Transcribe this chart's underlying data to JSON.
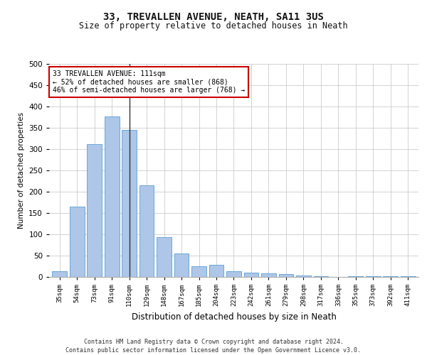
{
  "title1": "33, TREVALLEN AVENUE, NEATH, SA11 3US",
  "title2": "Size of property relative to detached houses in Neath",
  "xlabel": "Distribution of detached houses by size in Neath",
  "ylabel": "Number of detached properties",
  "categories": [
    "35sqm",
    "54sqm",
    "73sqm",
    "91sqm",
    "110sqm",
    "129sqm",
    "148sqm",
    "167sqm",
    "185sqm",
    "204sqm",
    "223sqm",
    "242sqm",
    "261sqm",
    "279sqm",
    "298sqm",
    "317sqm",
    "336sqm",
    "355sqm",
    "373sqm",
    "392sqm",
    "411sqm"
  ],
  "values": [
    13,
    165,
    312,
    377,
    345,
    215,
    93,
    55,
    25,
    28,
    13,
    10,
    8,
    6,
    4,
    2,
    0,
    2,
    1,
    1,
    1
  ],
  "bar_color": "#aec6e8",
  "bar_edge_color": "#5a9fd4",
  "highlight_index": 4,
  "highlight_line_color": "#333333",
  "annotation_line1": "33 TREVALLEN AVENUE: 111sqm",
  "annotation_line2": "← 52% of detached houses are smaller (868)",
  "annotation_line3": "46% of semi-detached houses are larger (768) →",
  "annotation_box_color": "#ffffff",
  "annotation_box_edge_color": "#cc0000",
  "ylim": [
    0,
    500
  ],
  "yticks": [
    0,
    50,
    100,
    150,
    200,
    250,
    300,
    350,
    400,
    450,
    500
  ],
  "footer": "Contains HM Land Registry data © Crown copyright and database right 2024.\nContains public sector information licensed under the Open Government Licence v3.0.",
  "background_color": "#ffffff",
  "grid_color": "#cccccc"
}
